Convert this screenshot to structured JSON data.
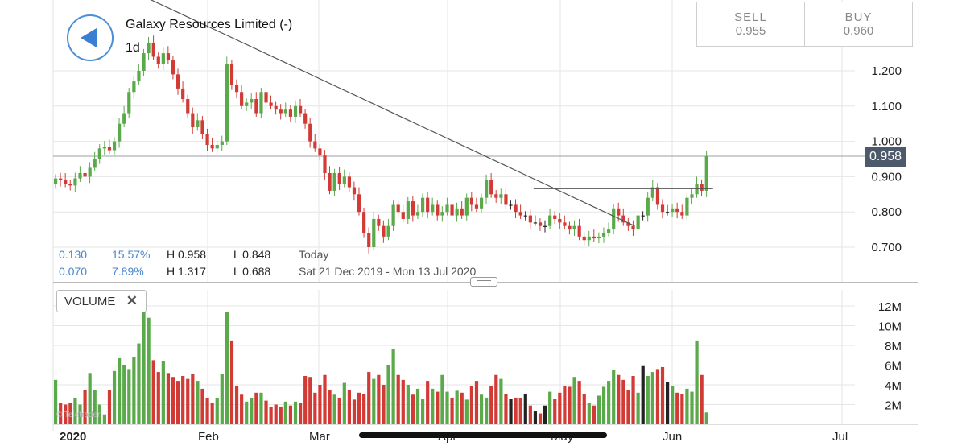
{
  "header": {
    "title": "Galaxy Resources Limited (-)",
    "period": "1d",
    "back_icon": "back-arrow-icon"
  },
  "trade": {
    "sell_label": "SELL",
    "sell_value": "0.955",
    "buy_label": "BUY",
    "buy_value": "0.960"
  },
  "stats": {
    "row1": {
      "change": "0.130",
      "pct": "15.57%",
      "high": "H 0.958",
      "low": "L 0.848",
      "label": "Today"
    },
    "row2": {
      "change": "0.070",
      "pct": "7.89%",
      "high": "H 1.317",
      "low": "L 0.688",
      "label": "Sat 21 Dec 2019 - Mon 13 Jul 2020"
    }
  },
  "volume_panel": {
    "label": "VOLUME",
    "close_icon": "close-icon"
  },
  "watermark": "© Teletrader",
  "colors": {
    "up": "#5aa94a",
    "down": "#d23a36",
    "neutral": "#222222",
    "grid": "#e6e6e6",
    "badge": "#4d5a6b",
    "accent": "#3b7fd0"
  },
  "chart_data": [
    {
      "type": "candlestick",
      "title": "Galaxy Resources Limited (-)",
      "y_ticks": [
        "0.700",
        "0.800",
        "0.900",
        "1.000",
        "1.100",
        "1.200"
      ],
      "ylim": [
        0.62,
        1.41
      ],
      "x_ticks": [
        "2020",
        "Feb",
        "Mar",
        "Apr",
        "May",
        "Jun",
        "Jul"
      ],
      "last_price": "0.958",
      "grid": true,
      "trendlines": [
        {
          "kind": "descending",
          "from": {
            "bar": 0,
            "price": 1.53
          },
          "to": {
            "bar": 118,
            "price": 0.76
          }
        },
        {
          "kind": "resistance",
          "from": {
            "bar": 98,
            "price": 0.866
          },
          "to": {
            "bar": 134,
            "price": 0.866
          }
        }
      ],
      "closes": [
        0.895,
        0.89,
        0.88,
        0.875,
        0.895,
        0.91,
        0.9,
        0.925,
        0.95,
        0.98,
        0.985,
        0.975,
        1.0,
        1.05,
        1.08,
        1.14,
        1.17,
        1.2,
        1.25,
        1.28,
        1.24,
        1.22,
        1.25,
        1.23,
        1.19,
        1.15,
        1.12,
        1.08,
        1.04,
        1.06,
        1.02,
        0.99,
        0.98,
        0.99,
        1.0,
        1.22,
        1.16,
        1.14,
        1.1,
        1.11,
        1.12,
        1.08,
        1.14,
        1.11,
        1.1,
        1.09,
        1.08,
        1.09,
        1.07,
        1.1,
        1.08,
        1.05,
        1.0,
        0.98,
        0.96,
        0.91,
        0.86,
        0.91,
        0.88,
        0.9,
        0.87,
        0.85,
        0.8,
        0.74,
        0.7,
        0.78,
        0.76,
        0.73,
        0.76,
        0.82,
        0.8,
        0.78,
        0.83,
        0.79,
        0.8,
        0.84,
        0.8,
        0.82,
        0.79,
        0.8,
        0.82,
        0.79,
        0.81,
        0.79,
        0.84,
        0.82,
        0.81,
        0.84,
        0.89,
        0.85,
        0.84,
        0.85,
        0.82,
        0.82,
        0.8,
        0.79,
        0.79,
        0.77,
        0.77,
        0.76,
        0.76,
        0.79,
        0.78,
        0.77,
        0.76,
        0.75,
        0.76,
        0.73,
        0.72,
        0.73,
        0.725,
        0.73,
        0.74,
        0.75,
        0.81,
        0.79,
        0.77,
        0.76,
        0.75,
        0.79,
        0.79,
        0.84,
        0.87,
        0.82,
        0.8,
        0.8,
        0.81,
        0.8,
        0.79,
        0.84,
        0.85,
        0.88,
        0.86,
        0.958
      ],
      "volume": {
        "y_ticks": [
          "2M",
          "4M",
          "6M",
          "8M",
          "10M",
          "12M"
        ],
        "ylim": [
          0,
          13.2
        ],
        "values_m": [
          4.5,
          2.2,
          2.0,
          2.2,
          2.7,
          2.0,
          3.5,
          5.2,
          3.5,
          2.0,
          1.0,
          3.5,
          5.4,
          6.7,
          6.0,
          5.6,
          6.8,
          8.2,
          12.5,
          10.8,
          6.5,
          5.3,
          6.4,
          5.2,
          4.8,
          4.4,
          4.9,
          4.6,
          5.1,
          4.4,
          3.6,
          2.7,
          2.2,
          2.7,
          5.1,
          11.4,
          8.5,
          3.9,
          3.0,
          2.3,
          2.7,
          3.2,
          3.2,
          2.4,
          1.8,
          2.0,
          1.8,
          2.3,
          1.9,
          2.3,
          2.2,
          4.9,
          4.8,
          3.2,
          4.0,
          5.0,
          3.5,
          3.0,
          2.7,
          4.2,
          3.5,
          2.5,
          3.2,
          3.1,
          5.3,
          4.6,
          5.0,
          4.0,
          6.0,
          7.6,
          5.0,
          4.5,
          4.0,
          3.0,
          3.6,
          2.6,
          4.4,
          3.6,
          3.3,
          5.0,
          3.3,
          2.7,
          3.4,
          3.2,
          2.5,
          3.9,
          4.4,
          3.0,
          2.7,
          3.9,
          5.0,
          4.6,
          3.1,
          2.6,
          2.7,
          2.7,
          3.1,
          1.9,
          1.3,
          1.1,
          1.9,
          3.3,
          2.6,
          3.2,
          3.9,
          3.8,
          4.8,
          4.4,
          3.1,
          2.2,
          1.9,
          2.9,
          3.8,
          4.4,
          5.5,
          5.0,
          4.5,
          3.5,
          4.9,
          3.2,
          5.9,
          4.9,
          5.3,
          5.6,
          5.8,
          4.3,
          3.9,
          3.2,
          3.1,
          3.6,
          3.3,
          8.5,
          5.0,
          1.2
        ]
      }
    }
  ]
}
